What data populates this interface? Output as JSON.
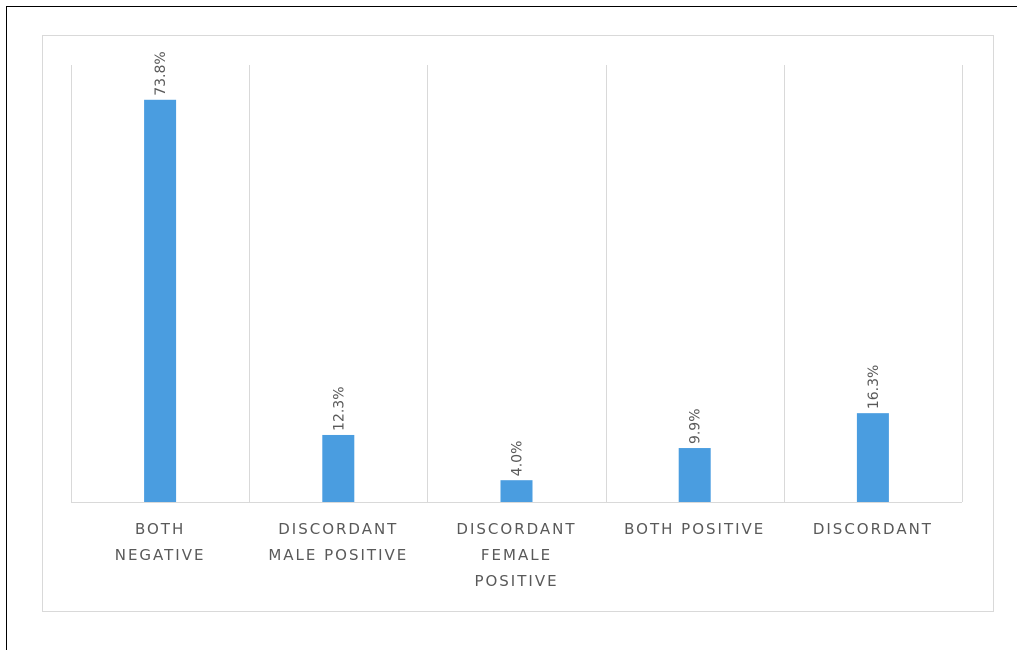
{
  "chart_data": {
    "type": "bar",
    "categories": [
      [
        "BOTH",
        "NEGATIVE"
      ],
      [
        "DISCORDANT",
        "MALE POSITIVE"
      ],
      [
        "DISCORDANT",
        "FEMALE",
        "POSITIVE"
      ],
      [
        "BOTH POSITIVE"
      ],
      [
        "DISCORDANT"
      ]
    ],
    "values": [
      73.8,
      12.3,
      4.0,
      9.9,
      16.3
    ],
    "data_labels": [
      "73.8%",
      "12.3%",
      "4.0%",
      "9.9%",
      "16.3%"
    ],
    "unit": "%",
    "ylim": [
      0,
      80
    ],
    "grid": "vertical category separators",
    "legend": "none",
    "bar_color": "#4a9de0",
    "grid_color": "#d9d9d9",
    "text_color": "#595959"
  }
}
